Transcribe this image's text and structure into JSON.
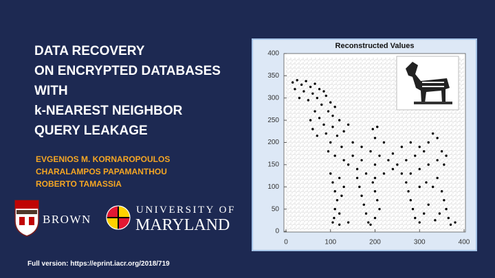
{
  "slide": {
    "title_lines": [
      "DATA RECOVERY",
      "ON ENCRYPTED DATABASES",
      "WITH",
      "k-NEAREST NEIGHBOR",
      "QUERY LEAKAGE"
    ],
    "authors": [
      "EVGENIOS M. KORNAROPOULOS",
      "CHARALAMPOS PAPAMANTHOU",
      "ROBERTO TAMASSIA"
    ],
    "brown_logo": "BROWN",
    "umd_logo_top": "UNIVERSITY OF",
    "umd_logo_bottom": "MARYLAND",
    "footer": "Full version: https://eprint.iacr.org/2018/719"
  },
  "chart_data": {
    "type": "scatter",
    "title": "Reconstructed Values",
    "color": "#000000",
    "xlim": [
      0,
      400
    ],
    "xticks": [
      0,
      100,
      200,
      300,
      400
    ],
    "ylim": [
      0,
      400
    ],
    "yticks": [
      0,
      50,
      100,
      150,
      200,
      250,
      300,
      350,
      400
    ],
    "x": [
      15,
      25,
      35,
      45,
      55,
      65,
      75,
      20,
      40,
      60,
      85,
      30,
      50,
      70,
      90,
      100,
      80,
      65,
      55,
      60,
      75,
      95,
      110,
      105,
      85,
      70,
      90,
      105,
      120,
      115,
      100,
      95,
      110,
      125,
      130,
      140,
      150,
      170,
      190,
      200,
      210,
      220,
      200,
      195,
      205,
      230,
      250,
      270,
      290,
      300,
      310,
      280,
      260,
      240,
      320,
      330,
      340,
      350,
      360,
      355,
      340,
      320,
      300,
      280,
      260,
      240,
      220,
      200,
      180,
      160,
      140,
      130,
      150,
      170,
      100,
      105,
      110,
      115,
      110,
      108,
      120,
      130,
      125,
      120,
      160,
      165,
      170,
      175,
      180,
      185,
      195,
      200,
      205,
      210,
      200,
      190,
      140,
      120,
      105,
      270,
      275,
      280,
      285,
      290,
      300,
      310,
      320,
      330,
      340,
      350,
      355,
      360,
      365,
      370,
      380,
      345,
      335,
      315,
      300
    ],
    "values": [
      335,
      340,
      330,
      338,
      325,
      332,
      320,
      320,
      315,
      310,
      315,
      300,
      295,
      300,
      305,
      290,
      285,
      270,
      250,
      230,
      255,
      270,
      280,
      260,
      240,
      215,
      220,
      235,
      250,
      215,
      200,
      180,
      170,
      190,
      225,
      240,
      200,
      190,
      180,
      150,
      170,
      200,
      210,
      230,
      235,
      160,
      150,
      160,
      170,
      190,
      180,
      200,
      190,
      175,
      200,
      220,
      210,
      180,
      170,
      150,
      160,
      150,
      140,
      130,
      130,
      140,
      130,
      120,
      130,
      140,
      150,
      160,
      170,
      160,
      130,
      110,
      90,
      70,
      50,
      30,
      120,
      100,
      80,
      40,
      120,
      100,
      80,
      60,
      40,
      20,
      110,
      90,
      70,
      50,
      30,
      15,
      20,
      15,
      20,
      110,
      90,
      70,
      50,
      30,
      20,
      40,
      60,
      100,
      120,
      90,
      70,
      50,
      30,
      15,
      20,
      40,
      25,
      110,
      100
    ]
  }
}
